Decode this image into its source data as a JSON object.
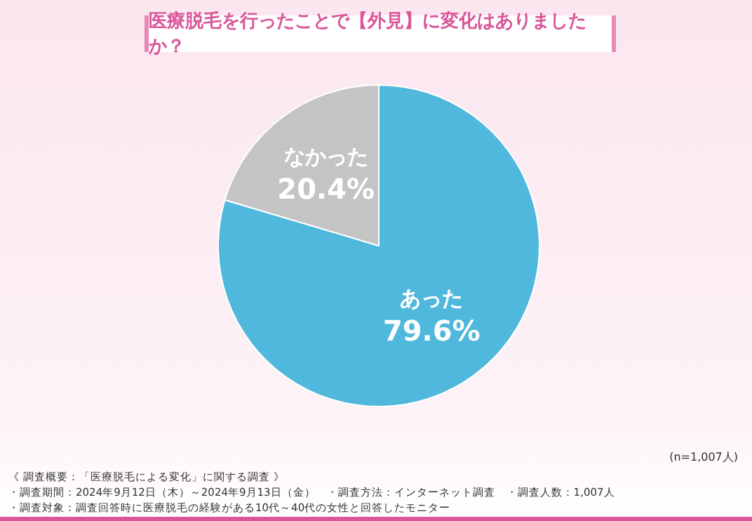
{
  "chart_data": {
    "type": "pie",
    "title": "医療脱毛を行ったことで【外見】に変化はありましたか？",
    "categories": [
      "あった",
      "なかった"
    ],
    "values": [
      79.6,
      20.4
    ],
    "colors": [
      "#4fb8dc",
      "#c4c4c4"
    ],
    "value_labels": [
      "79.6%",
      "20.4%"
    ],
    "legend": false,
    "annotations": [
      "(n=1,007人)",
      "《 調査概要：「医療脱毛による変化」に関する調査 》",
      "・調査期間：2024年9月12日（木）～2024年9月13日（金）　・調査方法：インターネット調査　・調査人数：1,007人",
      "・調査対象：調査回答時に医療脱毛の経験がある10代～40代の女性と回答したモニター"
    ]
  }
}
